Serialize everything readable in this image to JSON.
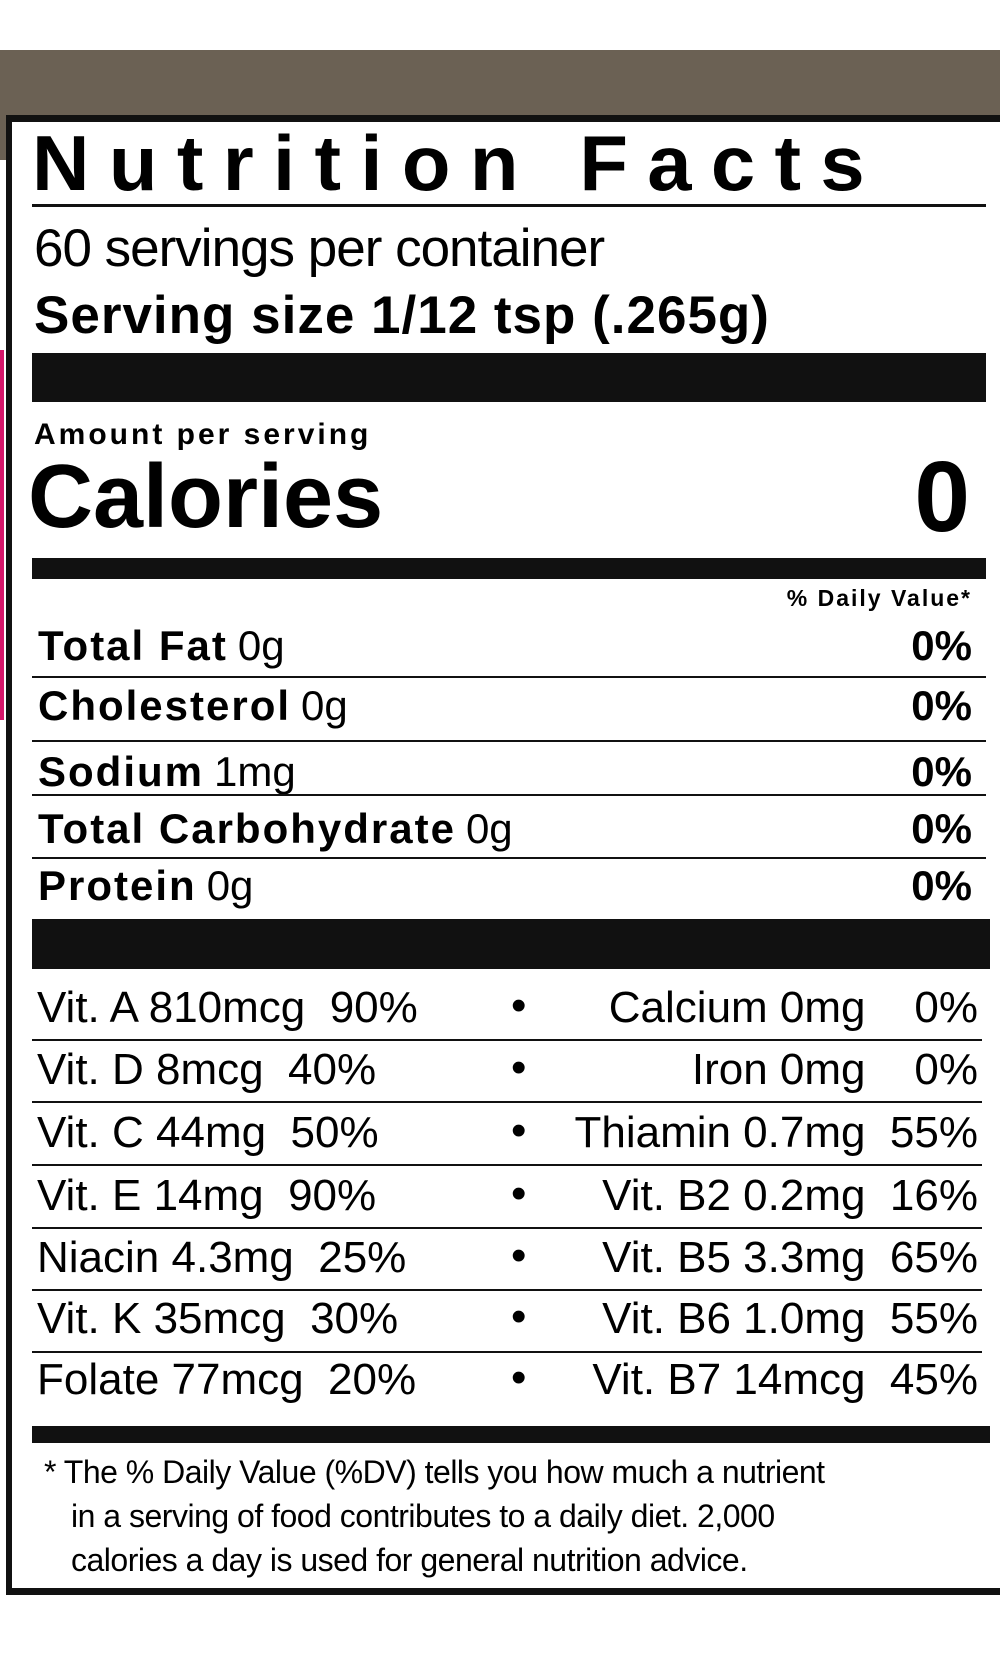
{
  "title": "Nutrition Facts",
  "servings_per_container": "60 servings per container",
  "serving_size": "Serving size  1/12 tsp (.265g)",
  "amount_per_serving": "Amount per serving",
  "calories_label": "Calories",
  "calories_value": "0",
  "daily_value_header": "% Daily Value*",
  "nutrients": [
    {
      "name": "Total Fat",
      "amount": "0g",
      "dv": "0%"
    },
    {
      "name": "Cholesterol",
      "amount": "0g",
      "dv": "0%"
    },
    {
      "name": "Sodium",
      "amount": "1mg",
      "dv": "0%"
    },
    {
      "name": "Total Carbohydrate",
      "amount": "0g",
      "dv": "0%"
    },
    {
      "name": "Protein",
      "amount": "0g",
      "dv": "0%"
    }
  ],
  "bullet": "•",
  "vitamins": [
    {
      "left": "Vit. A 810mcg  90%",
      "right": "Calcium 0mg    0%"
    },
    {
      "left": "Vit. D 8mcg  40%",
      "right": "Iron 0mg    0%"
    },
    {
      "left": "Vit. C 44mg  50%",
      "right": "Thiamin 0.7mg  55%"
    },
    {
      "left": "Vit. E 14mg  90%",
      "right": "Vit. B2 0.2mg  16%"
    },
    {
      "left": "Niacin 4.3mg  25%",
      "right": "Vit. B5 3.3mg  65%"
    },
    {
      "left": "Vit. K 35mcg  30%",
      "right": "Vit. B6 1.0mg  55%"
    },
    {
      "left": "Folate 77mcg  20%",
      "right": "Vit. B7 14mcg  45%"
    }
  ],
  "footnote": [
    "* The % Daily Value (%DV) tells you how much a nutrient",
    "in a serving of food contributes to a daily diet. 2,000",
    "calories a day is used for general nutrition advice."
  ],
  "colors": {
    "band": "#6b6154",
    "edge_accent": "#d6176b",
    "ink": "#111111"
  }
}
